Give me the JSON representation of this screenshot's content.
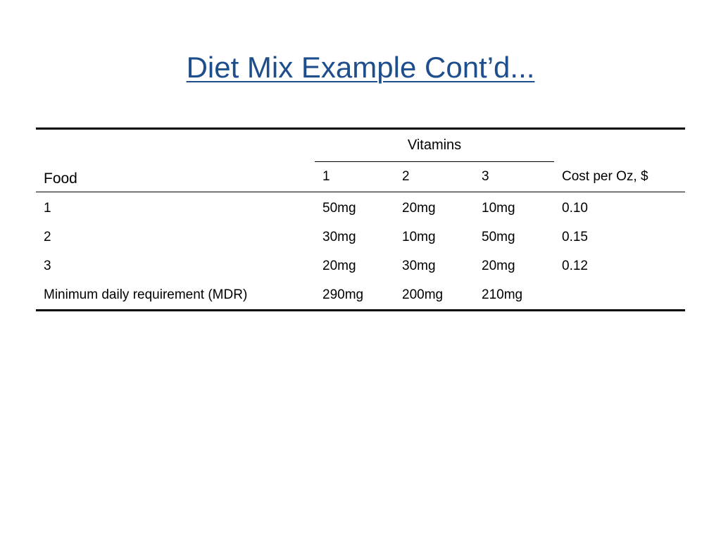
{
  "slide": {
    "title": "Diet Mix Example Cont’d..."
  },
  "table": {
    "group_header": "Vitamins",
    "food_header": "Food",
    "vitamin_columns": [
      "1",
      "2",
      "3"
    ],
    "cost_header": "Cost per Oz, $",
    "rows": [
      {
        "food": "1",
        "v1": "50mg",
        "v2": "20mg",
        "v3": "10mg",
        "cost": "0.10"
      },
      {
        "food": "2",
        "v1": "30mg",
        "v2": "10mg",
        "v3": "50mg",
        "cost": "0.15"
      },
      {
        "food": "3",
        "v1": "20mg",
        "v2": "30mg",
        "v3": "20mg",
        "cost": "0.12"
      },
      {
        "food": "Minimum daily requirement (MDR)",
        "v1": "290mg",
        "v2": "200mg",
        "v3": "210mg",
        "cost": ""
      }
    ]
  },
  "colors": {
    "title": "#1f4e8c",
    "text": "#000000",
    "background": "#ffffff"
  }
}
